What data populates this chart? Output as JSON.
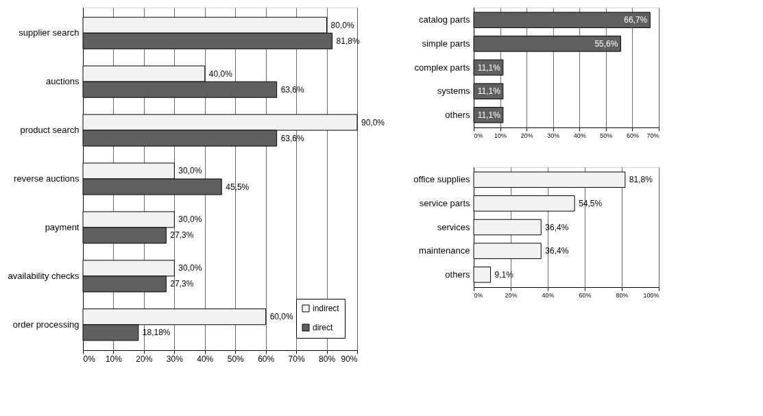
{
  "chart_data": [
    {
      "type": "bar",
      "orientation": "horizontal",
      "categories": [
        "supplier search",
        "auctions",
        "product search",
        "reverse auctions",
        "payment",
        "availability checks",
        "order processing"
      ],
      "series": [
        {
          "name": "indirect",
          "color": "#f2f2f2",
          "values": [
            80.0,
            40.0,
            90.0,
            30.0,
            30.0,
            30.0,
            60.0
          ],
          "value_labels": [
            "80,0%",
            "40,0%",
            "90,0%",
            "30,0%",
            "30,0%",
            "30,0%",
            "60,0%"
          ]
        },
        {
          "name": "direct",
          "color": "#606060",
          "values": [
            81.8,
            63.6,
            63.6,
            45.5,
            27.3,
            27.3,
            18.18
          ],
          "value_labels": [
            "81,8%",
            "63,6%",
            "63,6%",
            "45,5%",
            "27,3%",
            "27,3%",
            "18,18%"
          ]
        }
      ],
      "xlim": [
        0,
        90
      ],
      "xticks": [
        {
          "value": 0,
          "label": "0%"
        },
        {
          "value": 10,
          "label": "10%"
        },
        {
          "value": 20,
          "label": "20%"
        },
        {
          "value": 30,
          "label": "30%"
        },
        {
          "value": 40,
          "label": "40%"
        },
        {
          "value": 50,
          "label": "50%"
        },
        {
          "value": 60,
          "label": "60%"
        },
        {
          "value": 70,
          "label": "70%"
        },
        {
          "value": 80,
          "label": "80%"
        },
        {
          "value": 90,
          "label": "90%"
        }
      ],
      "grid": "x",
      "legend": "bottom right"
    },
    {
      "type": "bar",
      "orientation": "horizontal",
      "categories": [
        "catalog parts",
        "simple parts",
        "complex parts",
        "systems",
        "others"
      ],
      "series": [
        {
          "color": "#606060",
          "values": [
            66.7,
            55.6,
            11.1,
            11.1,
            11.1
          ],
          "value_labels": [
            "66,7%",
            "55,6%",
            "11,1%",
            "11,1%",
            "11,1%"
          ]
        }
      ],
      "xlim": [
        0,
        70
      ],
      "xticks": [
        {
          "value": 0,
          "label": "0%"
        },
        {
          "value": 10,
          "label": "10%"
        },
        {
          "value": 20,
          "label": "20%"
        },
        {
          "value": 30,
          "label": "30%"
        },
        {
          "value": 40,
          "label": "40%"
        },
        {
          "value": 50,
          "label": "50%"
        },
        {
          "value": 60,
          "label": "60%"
        },
        {
          "value": 70,
          "label": "70%"
        }
      ],
      "grid": "x"
    },
    {
      "type": "bar",
      "orientation": "horizontal",
      "categories": [
        "office supplies",
        "service parts",
        "services",
        "maintenance",
        "others"
      ],
      "series": [
        {
          "color": "#f2f2f2",
          "values": [
            81.8,
            54.5,
            36.4,
            36.4,
            9.1
          ],
          "value_labels": [
            "81,8%",
            "54,5%",
            "36,4%",
            "36,4%",
            "9,1%"
          ]
        }
      ],
      "xlim": [
        0,
        100
      ],
      "xticks": [
        {
          "value": 0,
          "label": "0%"
        },
        {
          "value": 20,
          "label": "20%"
        },
        {
          "value": 40,
          "label": "40%"
        },
        {
          "value": 60,
          "label": "60%"
        },
        {
          "value": 80,
          "label": "80%"
        },
        {
          "value": 100,
          "label": "100%"
        }
      ],
      "grid": "x"
    }
  ]
}
